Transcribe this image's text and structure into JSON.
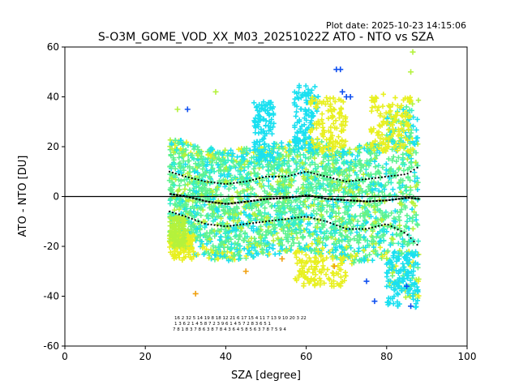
{
  "plot_date": "Plot date: 2025-10-23 14:15:06",
  "chart_data": {
    "type": "scatter",
    "title": "S-O3M_GOME_VOD_XX_M03_20251022Z ATO - NTO vs SZA",
    "xlabel": "SZA [degree]",
    "ylabel": "ATO - NTO [DU]",
    "xlim": [
      0,
      100
    ],
    "ylim": [
      -60,
      60
    ],
    "xticks": [
      0,
      20,
      40,
      60,
      80,
      100
    ],
    "yticks": [
      -60,
      -40,
      -20,
      0,
      20,
      40,
      60
    ],
    "zero_line": 0,
    "sza_range": [
      26,
      88
    ],
    "colors": {
      "cloud_main": "#5ef290",
      "cloud_cyan": "#1ae0f0",
      "cloud_teal": "#36f0c8",
      "cloud_yellow": "#e8f020",
      "cloud_lime": "#b4f23c",
      "outlier_blue": "#1050f0",
      "outlier_orange": "#f0a010",
      "mean": "#000000",
      "std": "#000000"
    },
    "mean_curve": {
      "x": [
        26,
        30,
        35,
        40,
        45,
        50,
        55,
        60,
        65,
        70,
        75,
        80,
        85,
        88
      ],
      "y": [
        1,
        0,
        -2,
        -3,
        -2,
        -1,
        -0.5,
        0.5,
        -1,
        -1.5,
        -2,
        -1.5,
        -0.5,
        -1
      ]
    },
    "upper_std_curve": {
      "x": [
        26,
        30,
        35,
        40,
        45,
        50,
        55,
        60,
        65,
        70,
        75,
        80,
        85,
        88
      ],
      "y": [
        10,
        8,
        6,
        5,
        6,
        8,
        8,
        10,
        8,
        6,
        7,
        8,
        9,
        12
      ]
    },
    "lower_std_curve": {
      "x": [
        26,
        30,
        35,
        40,
        45,
        50,
        55,
        60,
        65,
        70,
        75,
        80,
        85,
        88
      ],
      "y": [
        -6,
        -8,
        -11,
        -12,
        -11,
        -10,
        -9,
        -8,
        -10,
        -13,
        -13,
        -11,
        -15,
        -20
      ]
    },
    "count_row_1": "16 2 32 5 14 19 8 18 12 21 6 17 15 4 11 7 13 9 10 20 3 22",
    "count_row_2": "1 3 6 2 1 4 5 8 7 2 3 9 6 1 4 5 7 2 8 3 6 5 1",
    "count_row_3": "7 8 1 8 3 7 8 6 3 8 7 8 4 3 6 4 5 8 5 6 3 7 8 7 5 9 4"
  }
}
